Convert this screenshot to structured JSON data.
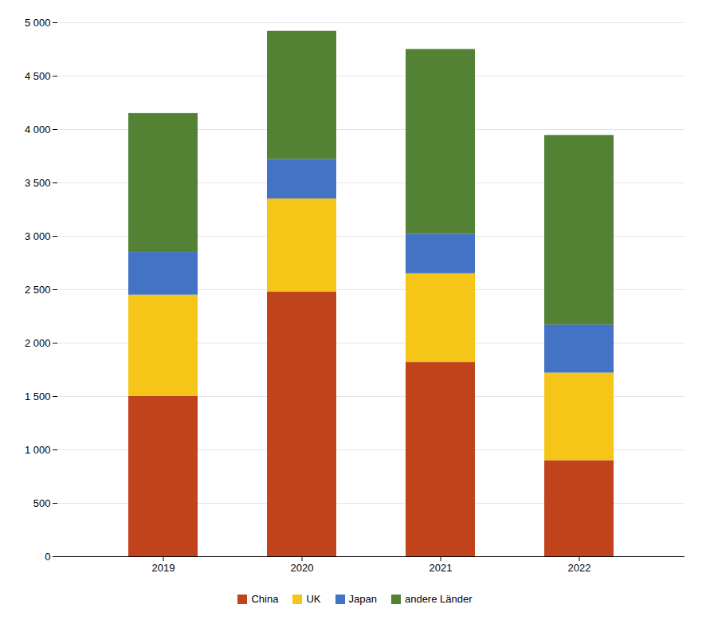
{
  "chart_data": {
    "type": "bar",
    "stacked": true,
    "categories": [
      "2019",
      "2020",
      "2021",
      "2022"
    ],
    "series": [
      {
        "name": "China",
        "color": "#C0431B",
        "values": [
          1500,
          2480,
          1820,
          900
        ]
      },
      {
        "name": "UK",
        "color": "#F5C518",
        "values": [
          950,
          870,
          830,
          820
        ]
      },
      {
        "name": "Japan",
        "color": "#4472C4",
        "values": [
          400,
          370,
          370,
          450
        ]
      },
      {
        "name": "andere Länder",
        "color": "#548235",
        "values": [
          1300,
          1200,
          1730,
          1775
        ]
      }
    ],
    "ylim": [
      0,
      5000
    ],
    "yticks": [
      0,
      500,
      {
        "value": 1000,
        "label": "1 000"
      },
      {
        "value": 1500,
        "label": "1 500"
      },
      {
        "value": 2000,
        "label": "2 000"
      },
      {
        "value": 2500,
        "label": "2 500"
      },
      {
        "value": 3000,
        "label": "3 000"
      },
      {
        "value": 3500,
        "label": "3 500"
      },
      {
        "value": 4000,
        "label": "4 000"
      },
      {
        "value": 4500,
        "label": "4 500"
      },
      {
        "value": 5000,
        "label": "5 000"
      }
    ],
    "grid": true,
    "legend": "bottom"
  }
}
